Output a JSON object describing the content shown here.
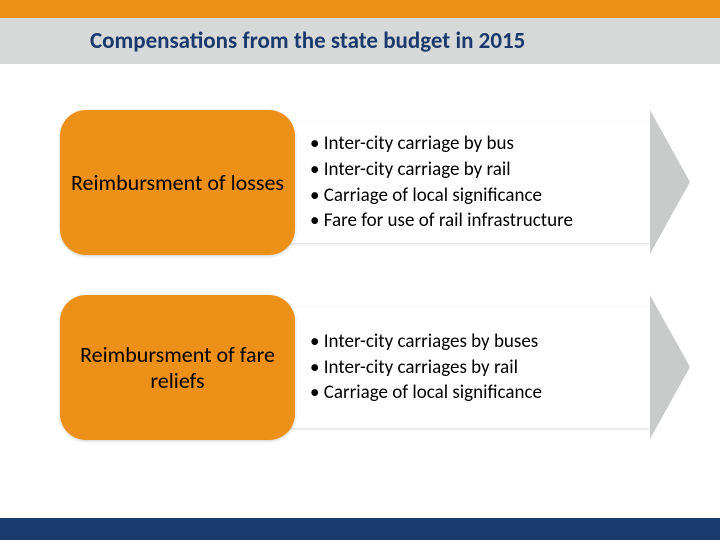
{
  "colors": {
    "orange": "#ed9017",
    "title_bg": "#d7d9d8",
    "title_text": "#1a3a6e",
    "arrow_fill": "#c9cbca",
    "bottom_bar": "#1a3a6e",
    "badge_text": "#000000",
    "bullet_text": "#000000"
  },
  "title": "Compensations from the state budget in 2015",
  "sections": [
    {
      "label": "Reimbursment of losses",
      "items": [
        "Inter-city carriage by bus",
        "Inter-city carriage by rail",
        "Carriage of local significance",
        "Fare for use of rail infrastructure"
      ]
    },
    {
      "label": "Reimbursment of fare reliefs",
      "items": [
        "Inter-city carriages by buses",
        "Inter-city carriages by rail",
        "Carriage of local significance"
      ]
    }
  ]
}
